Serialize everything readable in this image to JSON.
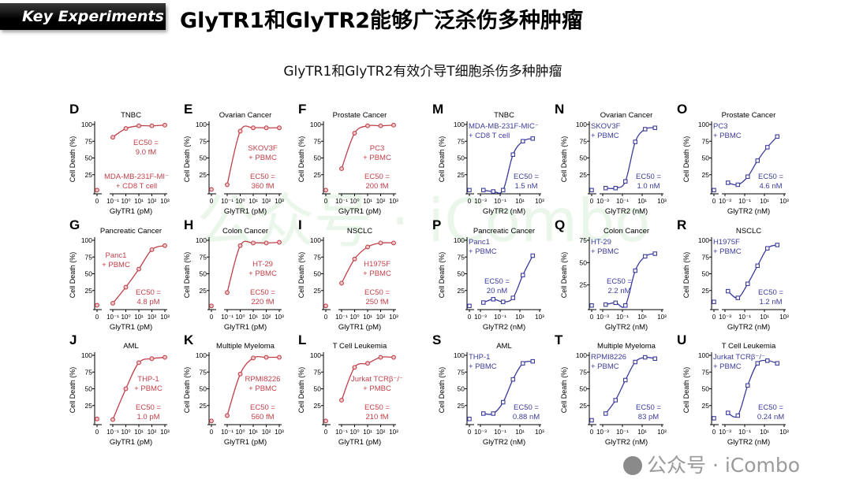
{
  "header": {
    "tag": "Key Experiments",
    "title": "GlyTR1和GlyTR2能够广泛杀伤多种肿瘤",
    "subtitle": "GlyTR1和GlyTR2有效介导T细胞杀伤多种肿瘤"
  },
  "watermark": {
    "center": "公众号 · iCombo",
    "corner": "公众号 · iCombo"
  },
  "colors": {
    "glytr1": "#c0404a",
    "glytr2": "#3c3c9c"
  },
  "chart_data": [
    {
      "panel": "D",
      "title": "TNBC",
      "type": "line",
      "xlabel": "GlyTR1 (pM)",
      "ylabel": "Cell Death (%)",
      "ylim": [
        0,
        100
      ],
      "yticks": [
        "25",
        "50",
        "75",
        "100"
      ],
      "xticks": [
        "0",
        "10⁻¹",
        "10⁰",
        "10¹",
        "10²",
        "10³"
      ],
      "x": [
        0,
        0.1,
        1,
        10,
        100,
        1000
      ],
      "y": [
        2,
        81,
        94,
        98,
        98,
        99
      ],
      "cell_line": "MDA-MB-231F-MI⁻",
      "effector": "+ CD8 T cell",
      "ec50_label": "EC50 =",
      "ec50": "9.0 fM"
    },
    {
      "panel": "E",
      "title": "Ovarian Cancer",
      "type": "line",
      "xlabel": "GlyTR1 (pM)",
      "ylabel": "Cell Death (%)",
      "ylim": [
        0,
        100
      ],
      "yticks": [
        "25",
        "50",
        "75",
        "100"
      ],
      "xticks": [
        "0",
        "10⁻¹",
        "10⁰",
        "10¹",
        "10²",
        "10³"
      ],
      "x": [
        0,
        0.1,
        1,
        10,
        100,
        1000
      ],
      "y": [
        3,
        10,
        90,
        95,
        95,
        95
      ],
      "cell_line": "SKOV3F",
      "effector": "+ PBMC",
      "ec50_label": "EC50 =",
      "ec50": "360 fM"
    },
    {
      "panel": "F",
      "title": "Prostate Cancer",
      "type": "line",
      "xlabel": "GlyTR1 (pM)",
      "ylabel": "Cell Death (%)",
      "ylim": [
        0,
        100
      ],
      "yticks": [
        "25",
        "50",
        "75",
        "100"
      ],
      "xticks": [
        "0",
        "10⁻¹",
        "10⁰",
        "10¹",
        "10²",
        "10³"
      ],
      "x": [
        0,
        0.1,
        1,
        10,
        100,
        1000
      ],
      "y": [
        2,
        34,
        87,
        98,
        98,
        99
      ],
      "cell_line": "PC3",
      "effector": "+ PBMC",
      "ec50_label": "EC50 =",
      "ec50": "200 fM"
    },
    {
      "panel": "M",
      "title": "TNBC",
      "type": "line",
      "xlabel": "GlyTR2 (nM)",
      "ylabel": "Cell Death (%)",
      "ylim": [
        0,
        100
      ],
      "yticks": [
        "25",
        "50",
        "75",
        "100"
      ],
      "xticks": [
        "0",
        "10⁻³",
        "10⁻¹",
        "10¹",
        "10³"
      ],
      "x": [
        0,
        0.002,
        0.02,
        0.2,
        2,
        20,
        200
      ],
      "y": [
        2,
        2,
        0,
        2,
        55,
        75,
        79
      ],
      "cell_line": "MDA-MB-231F-MIC⁻",
      "effector": "+ CD8  T  cell",
      "ec50_label": "EC50 =",
      "ec50": "1.5 nM"
    },
    {
      "panel": "N",
      "title": "Ovarian Cancer",
      "type": "line",
      "xlabel": "GlyTR2 (nM)",
      "ylabel": "Cell Death (%)",
      "ylim": [
        0,
        100
      ],
      "yticks": [
        "25",
        "50",
        "75",
        "100"
      ],
      "xticks": [
        "0",
        "10⁻³",
        "10⁻¹",
        "10¹",
        "10³"
      ],
      "x": [
        0,
        0.002,
        0.02,
        0.2,
        2,
        20,
        200
      ],
      "y": [
        2,
        5,
        5,
        15,
        74,
        93,
        95
      ],
      "cell_line": "SKOV3F",
      "effector": "+ PBMC",
      "ec50_label": "EC50 =",
      "ec50": "1.0 nM"
    },
    {
      "panel": "O",
      "title": "Prostate Cancer",
      "type": "line",
      "xlabel": "GlyTR2 (nM)",
      "ylabel": "Cell Death (%)",
      "ylim": [
        0,
        100
      ],
      "yticks": [
        "25",
        "50",
        "75",
        "100"
      ],
      "xticks": [
        "0",
        "10⁻³",
        "10⁻¹",
        "10¹",
        "10³"
      ],
      "x": [
        0,
        0.002,
        0.02,
        0.2,
        2,
        20,
        200
      ],
      "y": [
        2,
        13,
        10,
        22,
        46,
        66,
        82
      ],
      "cell_line": "PC3",
      "effector": "+ PBMC",
      "ec50_label": "EC50 =",
      "ec50": "4.6 nM"
    },
    {
      "panel": "G",
      "title": "Pancreatic Cancer",
      "type": "line",
      "xlabel": "GlyTR1 (pM)",
      "ylabel": "Cell Death (%)",
      "ylim": [
        0,
        100
      ],
      "yticks": [
        "25",
        "50",
        "75",
        "100"
      ],
      "xticks": [
        "0",
        "10⁻¹",
        "10⁰",
        "10¹",
        "10²",
        "10³"
      ],
      "x": [
        0,
        0.1,
        1,
        10,
        100,
        1000
      ],
      "y": [
        3,
        6,
        30,
        57,
        86,
        92
      ],
      "cell_line": "Panc1",
      "effector": "+ PBMC",
      "ec50_label": "EC50 =",
      "ec50": "4.8 pM"
    },
    {
      "panel": "H",
      "title": "Colon Cancer",
      "type": "line",
      "xlabel": "GlyTR1 (pM)",
      "ylabel": "Cell Death (%)",
      "ylim": [
        0,
        100
      ],
      "yticks": [
        "25",
        "50",
        "75",
        "100"
      ],
      "xticks": [
        "0",
        "10⁻¹",
        "10⁰",
        "10¹",
        "10²",
        "10³"
      ],
      "x": [
        0,
        0.1,
        1,
        10,
        100,
        1000
      ],
      "y": [
        2,
        22,
        92,
        96,
        96,
        97
      ],
      "cell_line": "HT-29",
      "effector": "+ PBMC",
      "ec50_label": "EC50 =",
      "ec50": "220 fM"
    },
    {
      "panel": "I",
      "title": "NSCLC",
      "type": "line",
      "xlabel": "GlyTR1 (pM)",
      "ylabel": "Cell Death (%)",
      "ylim": [
        0,
        100
      ],
      "yticks": [
        "25",
        "50",
        "75",
        "100"
      ],
      "xticks": [
        "0",
        "10⁻¹",
        "10⁰",
        "10¹",
        "10²",
        "10³"
      ],
      "x": [
        0,
        0.1,
        1,
        10,
        100,
        1000
      ],
      "y": [
        2,
        36,
        72,
        90,
        96,
        96
      ],
      "cell_line": "H1975F",
      "effector": "+ PBMC",
      "ec50_label": "EC50 =",
      "ec50": "250 fM"
    },
    {
      "panel": "P",
      "title": "Pancreatic Cancer",
      "type": "line",
      "xlabel": "GlyTR2 (nM)",
      "ylabel": "Cell Death (%)",
      "ylim": [
        0,
        100
      ],
      "yticks": [
        "25",
        "50",
        "75",
        "100"
      ],
      "xticks": [
        "0",
        "10⁻³",
        "10⁻¹",
        "10¹",
        "10³"
      ],
      "x": [
        0,
        0.002,
        0.02,
        0.2,
        2,
        20,
        200
      ],
      "y": [
        2,
        7,
        12,
        8,
        14,
        48,
        77
      ],
      "cell_line": "Panc1",
      "effector": "+ PBMC",
      "ec50_label": "EC50 =",
      "ec50": "20 nM"
    },
    {
      "panel": "Q",
      "title": "Colon Cancer",
      "type": "line",
      "xlabel": "GlyTR2 (nM)",
      "ylabel": "Cell Death (%)",
      "ylim": [
        0,
        75
      ],
      "yticks": [
        "25",
        "50",
        "75"
      ],
      "xticks": [
        "0",
        "10⁻³",
        "10⁻¹",
        "10¹",
        "10³"
      ],
      "x": [
        0,
        0.002,
        0.02,
        0.2,
        2,
        20,
        200
      ],
      "y": [
        2,
        3,
        5,
        2,
        41,
        57,
        60
      ],
      "cell_line": "HT-29",
      "effector": "+ PBMC",
      "ec50_label": "EC50 =",
      "ec50": "2.2 nM"
    },
    {
      "panel": "R",
      "title": "NSCLC",
      "type": "line",
      "xlabel": "GlyTR2 (nM)",
      "ylabel": "Cell Death (%)",
      "ylim": [
        0,
        100
      ],
      "yticks": [
        "25",
        "50",
        "75",
        "100"
      ],
      "xticks": [
        "0",
        "10⁻³",
        "10⁻¹",
        "10¹",
        "10³"
      ],
      "x": [
        0,
        0.002,
        0.02,
        0.2,
        2,
        20,
        200
      ],
      "y": [
        8,
        24,
        14,
        35,
        62,
        88,
        93
      ],
      "cell_line": "H1975F",
      "effector": "+ PBMC",
      "ec50_label": "EC50 =",
      "ec50": "1.2 nM"
    },
    {
      "panel": "J",
      "title": "AML",
      "type": "line",
      "xlabel": "GlyTR1 (pM)",
      "ylabel": "Cell Death (%)",
      "ylim": [
        0,
        100
      ],
      "yticks": [
        "25",
        "50",
        "75",
        "100"
      ],
      "xticks": [
        "0",
        "10⁻¹",
        "10⁰",
        "10¹",
        "10²",
        "10³"
      ],
      "x": [
        0,
        0.1,
        1,
        10,
        100,
        1000
      ],
      "y": [
        5,
        4,
        50,
        89,
        95,
        97
      ],
      "cell_line": "THP-1",
      "effector": "+ PBMC",
      "ec50_label": "EC50 =",
      "ec50": "1.0 pM"
    },
    {
      "panel": "K",
      "title": "Multiple Myeloma",
      "type": "line",
      "xlabel": "GlyTR1 (pM)",
      "ylabel": "Cell Death (%)",
      "ylim": [
        0,
        100
      ],
      "yticks": [
        "25",
        "50",
        "75",
        "100"
      ],
      "xticks": [
        "0",
        "10⁻¹",
        "10⁰",
        "10¹",
        "10²",
        "10³"
      ],
      "x": [
        0,
        0.1,
        1,
        10,
        100,
        1000
      ],
      "y": [
        2,
        10,
        72,
        96,
        97,
        97
      ],
      "cell_line": "RPMI8226",
      "effector": "+ PBMC",
      "ec50_label": "EC50 =",
      "ec50": "560 fM"
    },
    {
      "panel": "L",
      "title": "T Cell Leukemia",
      "type": "line",
      "xlabel": "GlyTR1 (pM)",
      "ylabel": "Cell Death (%)",
      "ylim": [
        0,
        100
      ],
      "yticks": [
        "25",
        "50",
        "75",
        "100"
      ],
      "xticks": [
        "0",
        "10⁻¹",
        "10⁰",
        "10¹",
        "10²",
        "10³"
      ],
      "x": [
        0,
        0.1,
        1,
        10,
        100,
        1000
      ],
      "y": [
        2,
        33,
        82,
        88,
        97,
        97
      ],
      "cell_line": "Jurkat TCRβ⁻/⁻",
      "effector": "+ PMBC",
      "ec50_label": "EC50 =",
      "ec50": "210 fM"
    },
    {
      "panel": "S",
      "title": "AML",
      "type": "line",
      "xlabel": "GlyTR2 (nM)",
      "ylabel": "Cell Death (%)",
      "ylim": [
        0,
        100
      ],
      "yticks": [
        "25",
        "50",
        "75",
        "100"
      ],
      "xticks": [
        "0",
        "10⁻³",
        "10⁻¹",
        "10¹",
        "10³"
      ],
      "x": [
        0,
        0.002,
        0.02,
        0.2,
        2,
        20,
        200
      ],
      "y": [
        5,
        13,
        13,
        30,
        64,
        88,
        91
      ],
      "cell_line": "THP-1",
      "effector": "+ PBMC",
      "ec50_label": "EC50 =",
      "ec50": "0.88 nM"
    },
    {
      "panel": "T",
      "title": "Multiple Myeloma",
      "type": "line",
      "xlabel": "GlyTR2 (nM)",
      "ylabel": "Cell Death (%)",
      "ylim": [
        0,
        100
      ],
      "yticks": [
        "25",
        "50",
        "75",
        "100"
      ],
      "xticks": [
        "0",
        "10⁻³",
        "10⁻¹",
        "10¹",
        "10³"
      ],
      "x": [
        0,
        0.002,
        0.02,
        0.2,
        2,
        20,
        200
      ],
      "y": [
        3,
        13,
        33,
        63,
        90,
        97,
        95
      ],
      "cell_line": "RPMI8226",
      "effector": "+ PBMC",
      "ec50_label": "EC50 =",
      "ec50": "83 pM"
    },
    {
      "panel": "U",
      "title": "T  Cell Leukemia",
      "type": "line",
      "xlabel": "GlyTR2 (nM)",
      "ylabel": "Cell Death (%)",
      "ylim": [
        0,
        100
      ],
      "yticks": [
        "25",
        "50",
        "75",
        "100"
      ],
      "xticks": [
        "0",
        "10⁻³",
        "10⁻¹",
        "10¹",
        "10³"
      ],
      "x": [
        0,
        0.002,
        0.02,
        0.2,
        2,
        20,
        200
      ],
      "y": [
        6,
        14,
        10,
        55,
        88,
        92,
        88
      ],
      "cell_line": "Jurkat TCRβ⁻/⁻",
      "effector": "+ PBMC",
      "ec50_label": "EC50 =",
      "ec50": "0.24 nM"
    }
  ]
}
